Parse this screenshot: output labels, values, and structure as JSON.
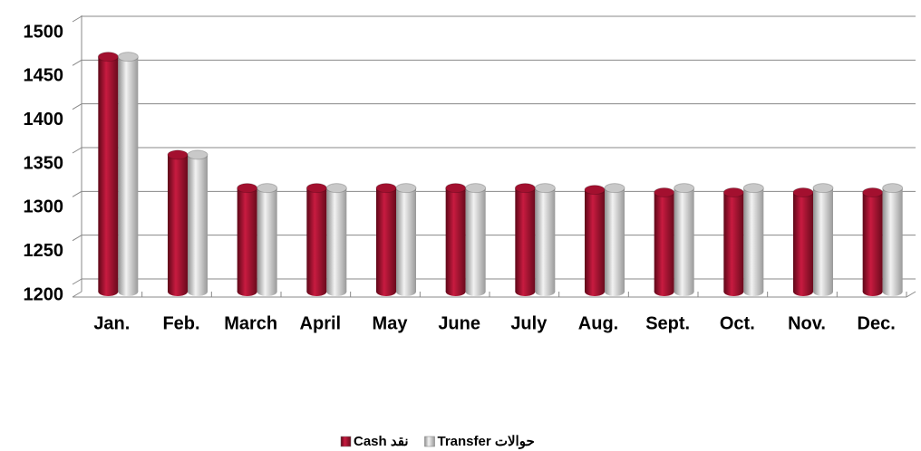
{
  "chart_data": {
    "type": "bar",
    "categories": [
      "Jan.",
      "Feb.",
      "March",
      "April",
      "May",
      "June",
      "July",
      "Aug.",
      "Sept.",
      "Oct.",
      "Nov.",
      "Dec."
    ],
    "series": [
      {
        "name": "Cash نقد",
        "color": "#a3102f",
        "values": [
          1460,
          1348,
          1310,
          1310,
          1310,
          1310,
          1310,
          1308,
          1305,
          1305,
          1305,
          1305
        ]
      },
      {
        "name": "Transfer حوالات",
        "color": "#c9c9c9",
        "values": [
          1460,
          1348,
          1310,
          1310,
          1310,
          1310,
          1310,
          1310,
          1310,
          1310,
          1310,
          1310
        ]
      }
    ],
    "ylim": [
      1200,
      1500
    ],
    "yticks": [
      1200,
      1250,
      1300,
      1350,
      1400,
      1450,
      1500
    ],
    "grid": true
  }
}
